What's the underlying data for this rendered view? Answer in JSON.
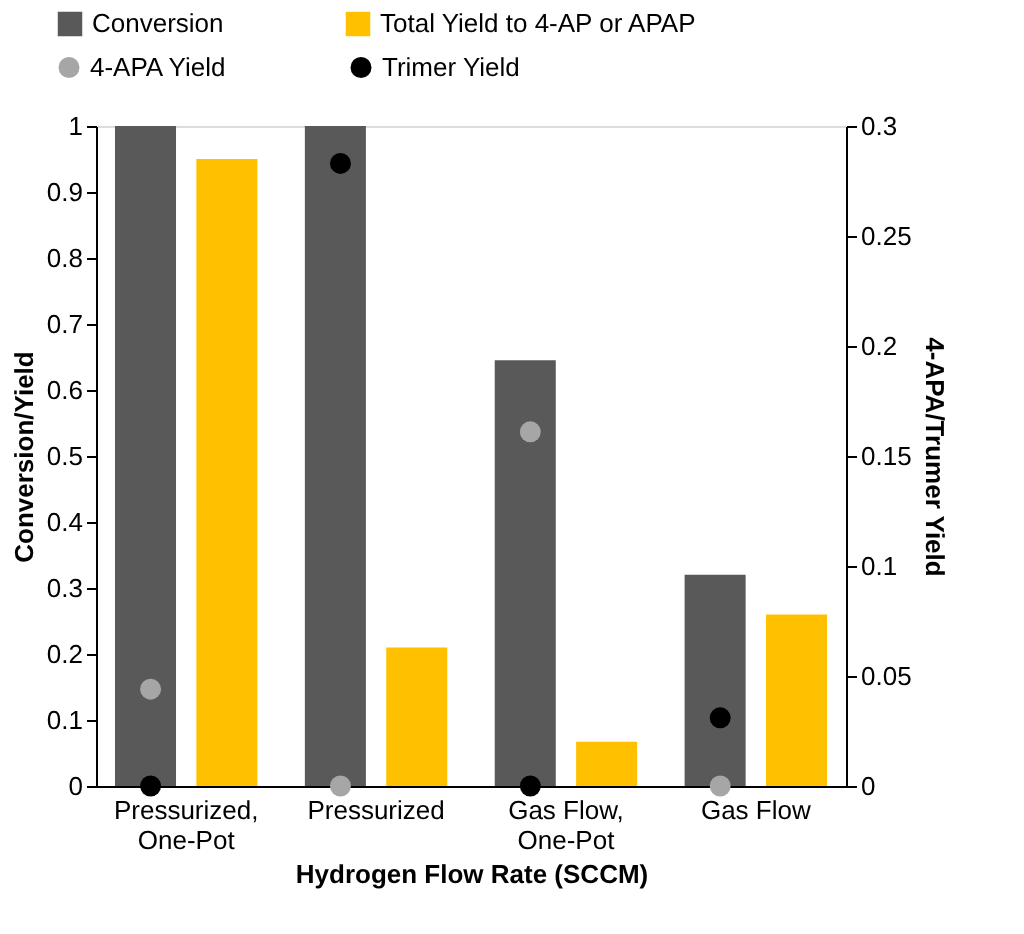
{
  "chart_data": {
    "type": "bar",
    "xlabel": "Hydrogen Flow Rate (SCCM)",
    "ylabel": "Conversion/Yield",
    "y2label": "4-APA/Trumer Yield",
    "categories": [
      "Pressurized, One-Pot",
      "Pressurized",
      "Gas Flow, One-Pot",
      "Gas Flow"
    ],
    "series": [
      {
        "name": "Conversion",
        "color": "#595959",
        "values": [
          1,
          1,
          0.645,
          0.32
        ]
      },
      {
        "name": "Total Yield to 4-AP or APAP",
        "color": "#ffc000",
        "values": [
          0.95,
          0.21,
          0.067,
          0.26
        ]
      },
      {
        "name": "4-APA Yield",
        "type": "scatter",
        "axis": "y2",
        "color": "#a6a6a6",
        "values": [
          0.044,
          0,
          0.161,
          0
        ]
      },
      {
        "name": "Trimer Yield",
        "type": "scatter",
        "axis": "y2",
        "color": "#000000",
        "values": [
          0,
          0.283,
          0,
          0.031
        ]
      }
    ],
    "ylim": [
      0,
      1
    ],
    "yticks": [
      0,
      0.1,
      0.2,
      0.3,
      0.4,
      0.5,
      0.6,
      0.7,
      0.8,
      0.9,
      1
    ],
    "y2lim": [
      0,
      0.3
    ],
    "y2ticks": [
      0,
      0.05,
      0.1,
      0.15,
      0.2,
      0.25,
      0.3
    ],
    "grid": false,
    "legend": "top",
    "marker": "circle"
  }
}
